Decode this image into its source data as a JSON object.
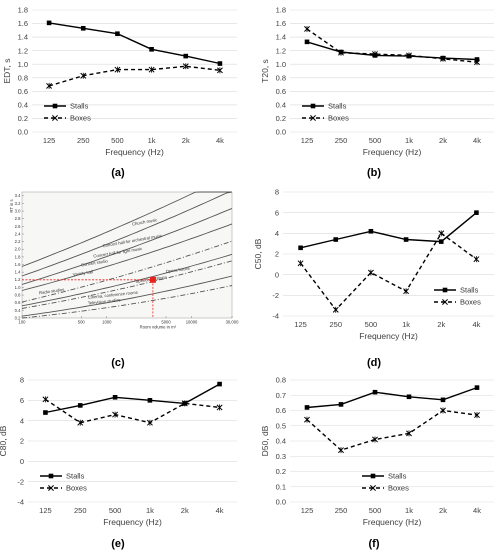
{
  "chart_data": [
    {
      "id": "a",
      "type": "line",
      "panel_label": "(a)",
      "categories": [
        "125",
        "250",
        "500",
        "1k",
        "2k",
        "4k"
      ],
      "xlabel": "Frequency (Hz)",
      "ylabel": "EDT, s",
      "ylim": [
        0,
        1.8
      ],
      "ystep": 0.2,
      "ydecimals": 1,
      "legend": "bottom-left",
      "grid": true,
      "series": [
        {
          "name": "Stalls",
          "style": "solid-square",
          "values": [
            1.61,
            1.53,
            1.45,
            1.22,
            1.12,
            1.01
          ]
        },
        {
          "name": "Boxes",
          "style": "dashed-x",
          "values": [
            0.68,
            0.83,
            0.92,
            0.92,
            0.97,
            0.91
          ]
        }
      ]
    },
    {
      "id": "b",
      "type": "line",
      "panel_label": "(b)",
      "categories": [
        "125",
        "250",
        "500",
        "1k",
        "2k",
        "4k"
      ],
      "xlabel": "Frequency (Hz)",
      "ylabel": "T20, s",
      "ylim": [
        0,
        1.8
      ],
      "ystep": 0.2,
      "ydecimals": 1,
      "legend": "bottom-left",
      "grid": true,
      "series": [
        {
          "name": "Stalls",
          "style": "solid-square",
          "values": [
            1.33,
            1.18,
            1.13,
            1.12,
            1.09,
            1.07
          ]
        },
        {
          "name": "Boxes",
          "style": "dashed-x",
          "values": [
            1.52,
            1.17,
            1.15,
            1.13,
            1.08,
            1.03
          ]
        }
      ]
    },
    {
      "id": "c",
      "type": "scatter",
      "panel_label": "(c)",
      "xlabel": "Room volume in m³",
      "ylabel": "RT in s",
      "xscale": "log",
      "xlim": [
        100,
        30000
      ],
      "xticks": [
        "100",
        "500",
        "1000",
        "5000",
        "10000",
        "30,000"
      ],
      "ylim": [
        0.2,
        3.5
      ],
      "yticks": [
        "0.2",
        "0.4",
        "0.6",
        "0.8",
        "1.0",
        "1.2",
        "1.4",
        "1.6",
        "1.8",
        "2.0",
        "2.2",
        "2.4",
        "2.6",
        "2.8",
        "3.0",
        "3.2",
        "3.4"
      ],
      "curve_labels": [
        "Church music",
        "Concert hall for orchestral music",
        "Concert hall for light music",
        "Concert studio",
        "Opera house",
        "Speech auditoria",
        "Variety hall",
        "Radio studios",
        "Cinema, conference rooms",
        "Television studios"
      ],
      "marker": {
        "volume": 3500,
        "rt": 1.2,
        "color": "#e8231e"
      }
    },
    {
      "id": "d",
      "type": "line",
      "panel_label": "(d)",
      "categories": [
        "125",
        "250",
        "500",
        "1k",
        "2k",
        "4k"
      ],
      "xlabel": "Frequency (Hz)",
      "ylabel": "C50, dB",
      "ylim": [
        -4,
        8
      ],
      "ystep": 2,
      "ydecimals": 0,
      "legend": "bottom-right",
      "grid": true,
      "series": [
        {
          "name": "Stalls",
          "style": "solid-square",
          "values": [
            2.6,
            3.4,
            4.2,
            3.4,
            3.2,
            6.0
          ]
        },
        {
          "name": "Boxes",
          "style": "dashed-x",
          "values": [
            1.1,
            -3.4,
            0.2,
            -1.6,
            4.0,
            1.5
          ]
        }
      ]
    },
    {
      "id": "e",
      "type": "line",
      "panel_label": "(e)",
      "categories": [
        "125",
        "250",
        "500",
        "1k",
        "2k",
        "4k"
      ],
      "xlabel": "Frequency (Hz)",
      "ylabel": "C80, dB",
      "ylim": [
        -4,
        8
      ],
      "ystep": 2,
      "ydecimals": 0,
      "legend": "bottom-left",
      "grid": true,
      "series": [
        {
          "name": "Stalls",
          "style": "solid-square",
          "values": [
            4.8,
            5.5,
            6.3,
            6.0,
            5.7,
            7.6
          ]
        },
        {
          "name": "Boxes",
          "style": "dashed-x",
          "values": [
            6.1,
            3.8,
            4.6,
            3.8,
            5.7,
            5.3
          ]
        }
      ]
    },
    {
      "id": "f",
      "type": "line",
      "panel_label": "(f)",
      "categories": [
        "125",
        "250",
        "500",
        "1k",
        "2k",
        "4k"
      ],
      "xlabel": "Frequency (Hz)",
      "ylabel": "D50, dB",
      "ylim": [
        0,
        0.8
      ],
      "ystep": 0.1,
      "ydecimals": 1,
      "legend": "bottom-center",
      "grid": true,
      "series": [
        {
          "name": "Stalls",
          "style": "solid-square",
          "values": [
            0.62,
            0.64,
            0.72,
            0.69,
            0.67,
            0.75
          ]
        },
        {
          "name": "Boxes",
          "style": "dashed-x",
          "values": [
            0.54,
            0.34,
            0.41,
            0.45,
            0.6,
            0.57
          ]
        }
      ]
    }
  ]
}
